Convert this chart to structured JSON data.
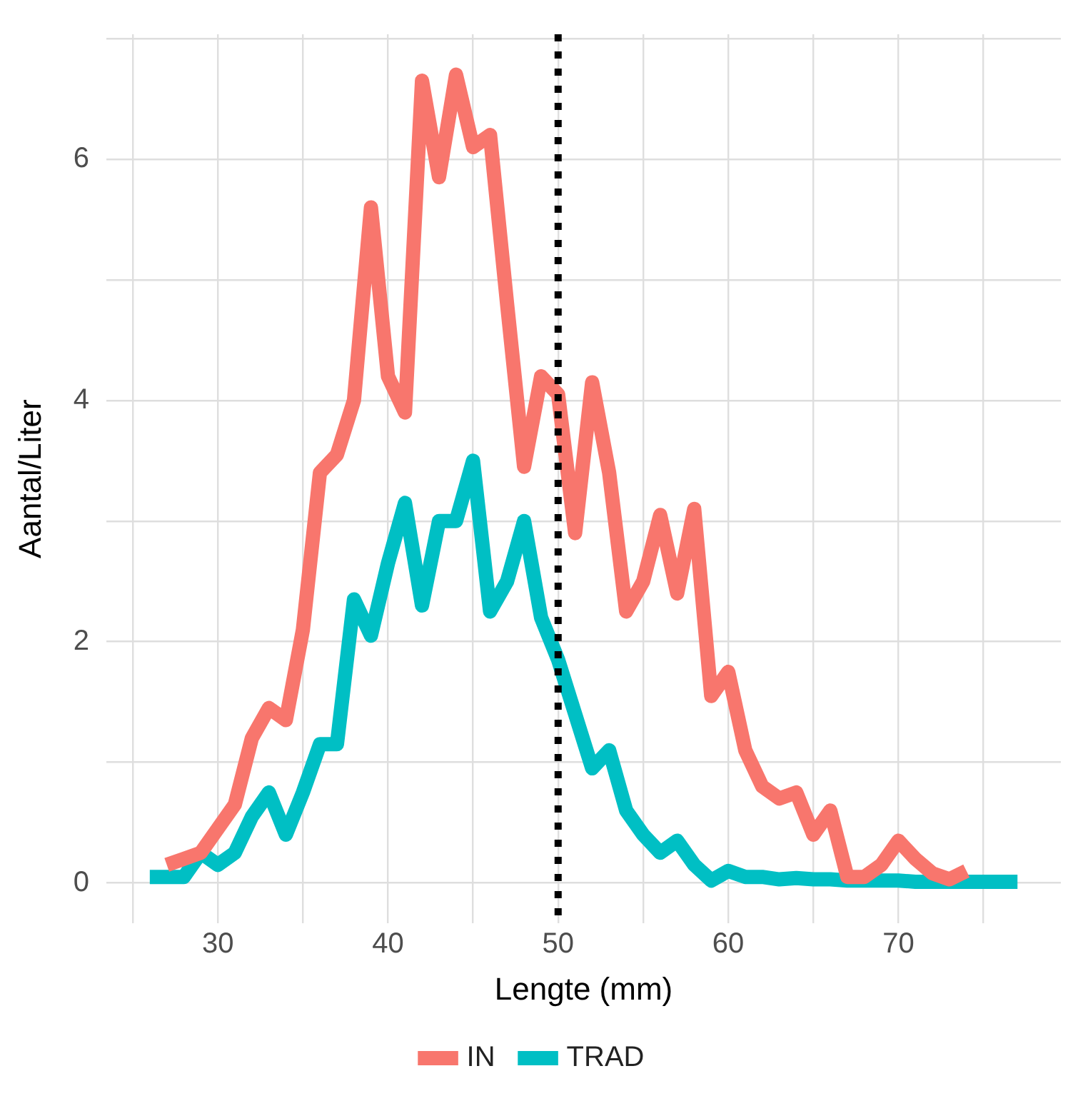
{
  "chart_data": {
    "type": "line",
    "xlabel": "Lengte (mm)",
    "ylabel": "Aantal/Liter",
    "xlim": [
      23.45,
      79.55
    ],
    "ylim": [
      -0.335,
      7.035
    ],
    "xticks": [
      {
        "value": 25,
        "label": null
      },
      30,
      {
        "value": 35,
        "label": null
      },
      40,
      {
        "value": 45,
        "label": null
      },
      50,
      {
        "value": 55,
        "label": null
      },
      60,
      {
        "value": 65,
        "label": null
      },
      70,
      {
        "value": 75,
        "label": null
      }
    ],
    "yticks": [
      0,
      {
        "value": 1,
        "label": null
      },
      2,
      {
        "value": 3,
        "label": null
      },
      4,
      {
        "value": 5,
        "label": null
      },
      6,
      {
        "value": 7,
        "label": null
      }
    ],
    "grid": true,
    "legend": "bottom",
    "marker": "none",
    "line_style": "solid",
    "ref_lines": [
      {
        "axis": "x",
        "value": 50,
        "color": "#000000",
        "line_style": "dotted"
      }
    ],
    "series": [
      {
        "name": "IN",
        "color": "#f8766d",
        "x": [
          27,
          28,
          29,
          30,
          31,
          32,
          33,
          34,
          35,
          36,
          37,
          38,
          39,
          40,
          41,
          42,
          43,
          44,
          45,
          46,
          47,
          48,
          49,
          50,
          51,
          52,
          53,
          54,
          55,
          56,
          57,
          58,
          59,
          60,
          61,
          62,
          63,
          64,
          65,
          66,
          67,
          68,
          69,
          70,
          71,
          72,
          73,
          74
        ],
        "values": [
          0.15,
          0.2,
          0.25,
          0.45,
          0.65,
          1.2,
          1.45,
          1.35,
          2.1,
          3.4,
          3.55,
          4.0,
          5.6,
          4.2,
          3.9,
          6.65,
          5.85,
          6.7,
          6.1,
          6.2,
          4.8,
          3.45,
          4.2,
          4.05,
          2.9,
          4.15,
          3.4,
          2.25,
          2.5,
          3.05,
          2.4,
          3.1,
          1.55,
          1.75,
          1.1,
          0.8,
          0.7,
          0.75,
          0.4,
          0.6,
          0.05,
          0.05,
          0.15,
          0.35,
          0.2,
          0.08,
          0.03,
          0.1
        ]
      },
      {
        "name": "TRAD",
        "color": "#00bfc4",
        "x": [
          26,
          27,
          28,
          29,
          30,
          31,
          32,
          33,
          34,
          35,
          36,
          37,
          38,
          39,
          40,
          41,
          42,
          43,
          44,
          45,
          46,
          47,
          48,
          49,
          50,
          51,
          52,
          53,
          54,
          55,
          56,
          57,
          58,
          59,
          60,
          61,
          62,
          63,
          64,
          65,
          66,
          67,
          68,
          69,
          70,
          71,
          72,
          73,
          74,
          75,
          76,
          77
        ],
        "values": [
          0.05,
          0.05,
          0.05,
          0.25,
          0.15,
          0.25,
          0.55,
          0.75,
          0.4,
          0.75,
          1.15,
          1.15,
          2.35,
          2.05,
          2.65,
          3.15,
          2.3,
          3.0,
          3.0,
          3.5,
          2.25,
          2.5,
          3.0,
          2.2,
          1.85,
          1.4,
          0.95,
          1.1,
          0.6,
          0.4,
          0.25,
          0.35,
          0.15,
          0.02,
          0.1,
          0.05,
          0.05,
          0.03,
          0.04,
          0.03,
          0.03,
          0.02,
          0.02,
          0.02,
          0.02,
          0.01,
          0.01,
          0.01,
          0.01,
          0.01,
          0.01,
          0.01
        ]
      }
    ]
  }
}
